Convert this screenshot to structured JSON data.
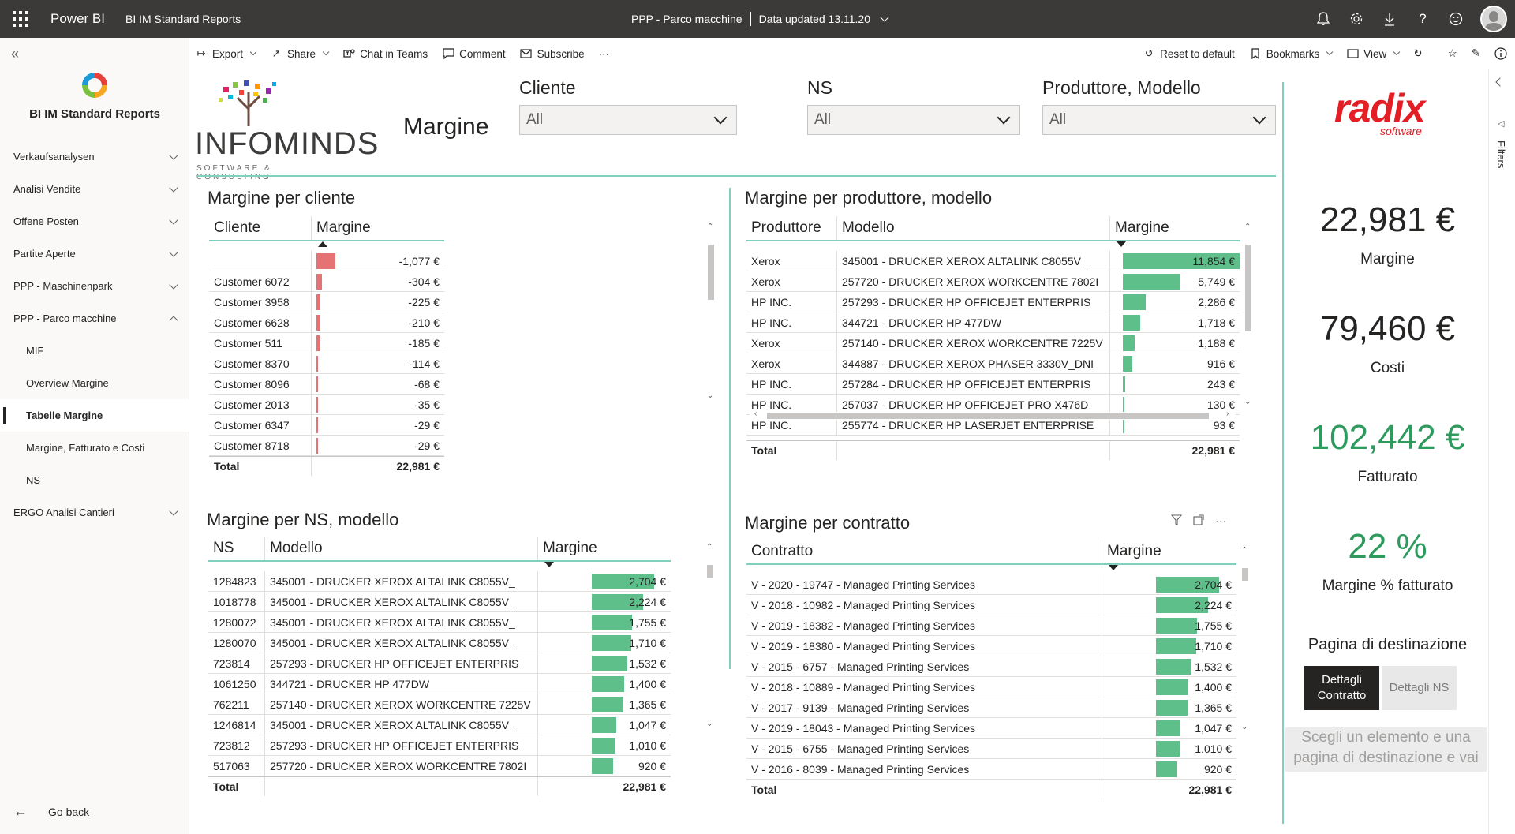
{
  "topbar": {
    "brand": "Power BI",
    "workspace": "BI IM Standard Reports",
    "report_name": "PPP - Parco macchine",
    "data_updated": "Data updated 13.11.20"
  },
  "leftnav": {
    "app_title": "BI IM Standard Reports",
    "items": [
      {
        "label": "Verkaufsanalysen",
        "type": "group",
        "expanded": false
      },
      {
        "label": "Analisi Vendite",
        "type": "group",
        "expanded": false
      },
      {
        "label": "Offene Posten",
        "type": "group",
        "expanded": false
      },
      {
        "label": "Partite Aperte",
        "type": "group",
        "expanded": false
      },
      {
        "label": "PPP - Maschinenpark",
        "type": "group",
        "expanded": false
      },
      {
        "label": "PPP - Parco macchine",
        "type": "group",
        "expanded": true
      },
      {
        "label": "MIF",
        "type": "sub"
      },
      {
        "label": "Overview Margine",
        "type": "sub"
      },
      {
        "label": "Tabelle Margine",
        "type": "sub",
        "active": true
      },
      {
        "label": "Margine, Fatturato e Costi",
        "type": "sub"
      },
      {
        "label": "NS",
        "type": "sub"
      },
      {
        "label": "ERGO Analisi Cantieri",
        "type": "group",
        "expanded": false
      }
    ],
    "go_back": "Go back"
  },
  "actionbar": {
    "export": "Export",
    "share": "Share",
    "chat": "Chat in Teams",
    "comment": "Comment",
    "subscribe": "Subscribe",
    "more": "···",
    "reset": "Reset to default",
    "bookmarks": "Bookmarks",
    "view": "View"
  },
  "header": {
    "logo_word": "INFOMINDS",
    "logo_sub": "SOFTWARE & CONSULTING",
    "page_title": "Margine"
  },
  "slicers": [
    {
      "label": "Cliente",
      "value": "All"
    },
    {
      "label": "NS",
      "value": "All"
    },
    {
      "label": "Produttore, Modello",
      "value": "All"
    }
  ],
  "colors": {
    "accent": "#81cfbd",
    "bar_positive": "#5fbf8a",
    "bar_negative": "#e57373",
    "kpi_green": "#2e9a5e",
    "radix_red": "#e31e24"
  },
  "table_cliente": {
    "title": "Margine per cliente",
    "headers": [
      "Cliente",
      "Margine"
    ],
    "rows": [
      {
        "name": "",
        "value": "-1,077 €",
        "num": -1077
      },
      {
        "name": "Customer 6072",
        "value": "-304 €",
        "num": -304
      },
      {
        "name": "Customer 3958",
        "value": "-225 €",
        "num": -225
      },
      {
        "name": "Customer 6628",
        "value": "-210 €",
        "num": -210
      },
      {
        "name": "Customer 511",
        "value": "-185 €",
        "num": -185
      },
      {
        "name": "Customer 8370",
        "value": "-114 €",
        "num": -114
      },
      {
        "name": "Customer 8096",
        "value": "-68 €",
        "num": -68
      },
      {
        "name": "Customer 2013",
        "value": "-35 €",
        "num": -35
      },
      {
        "name": "Customer 6347",
        "value": "-29 €",
        "num": -29
      },
      {
        "name": "Customer 8718",
        "value": "-29 €",
        "num": -29
      }
    ],
    "total_label": "Total",
    "total_value": "22,981 €"
  },
  "table_produttore": {
    "title": "Margine per produttore, modello",
    "headers": [
      "Produttore",
      "Modello",
      "Margine"
    ],
    "rows": [
      {
        "a": "Xerox",
        "b": "345001 - DRUCKER XEROX ALTALINK C8055V_",
        "value": "11,854 €",
        "num": 11854
      },
      {
        "a": "Xerox",
        "b": "257720 - DRUCKER XEROX WORKCENTRE 7802I",
        "value": "5,749 €",
        "num": 5749
      },
      {
        "a": "HP INC.",
        "b": "257293 - DRUCKER HP OFFICEJET ENTERPRIS",
        "value": "2,286 €",
        "num": 2286
      },
      {
        "a": "HP INC.",
        "b": "344721 - DRUCKER HP 477DW",
        "value": "1,718 €",
        "num": 1718
      },
      {
        "a": "Xerox",
        "b": "257140 - DRUCKER XEROX WORKCENTRE 7225V",
        "value": "1,188 €",
        "num": 1188
      },
      {
        "a": "Xerox",
        "b": "344887 - DRUCKER XEROX PHASER 3330V_DNI",
        "value": "916 €",
        "num": 916
      },
      {
        "a": "HP INC.",
        "b": "257284 - DRUCKER HP OFFICEJET ENTERPRIS",
        "value": "243 €",
        "num": 243
      },
      {
        "a": "HP INC.",
        "b": "257037 - DRUCKER HP OFFICEJET PRO X476D",
        "value": "130 €",
        "num": 130
      },
      {
        "a": "HP INC.",
        "b": "255774 - DRUCKER HP LASERJET ENTERPRISE",
        "value": "93 €",
        "num": 93
      }
    ],
    "total_label": "Total",
    "total_value": "22,981 €"
  },
  "table_ns": {
    "title": "Margine per NS, modello",
    "headers": [
      "NS",
      "Modello",
      "Margine"
    ],
    "rows": [
      {
        "a": "1284823",
        "b": "345001 - DRUCKER XEROX ALTALINK C8055V_",
        "value": "2,704 €",
        "num": 2704
      },
      {
        "a": "1018778",
        "b": "345001 - DRUCKER XEROX ALTALINK C8055V_",
        "value": "2,224 €",
        "num": 2224
      },
      {
        "a": "1280072",
        "b": "345001 - DRUCKER XEROX ALTALINK C8055V_",
        "value": "1,755 €",
        "num": 1755
      },
      {
        "a": "1280070",
        "b": "345001 - DRUCKER XEROX ALTALINK C8055V_",
        "value": "1,710 €",
        "num": 1710
      },
      {
        "a": "723814",
        "b": "257293 - DRUCKER HP OFFICEJET ENTERPRIS",
        "value": "1,532 €",
        "num": 1532
      },
      {
        "a": "1061250",
        "b": "344721 - DRUCKER HP 477DW",
        "value": "1,400 €",
        "num": 1400
      },
      {
        "a": "762211",
        "b": "257140 - DRUCKER XEROX WORKCENTRE 7225V",
        "value": "1,365 €",
        "num": 1365
      },
      {
        "a": "1246814",
        "b": "345001 - DRUCKER XEROX ALTALINK C8055V_",
        "value": "1,047 €",
        "num": 1047
      },
      {
        "a": "723812",
        "b": "257293 - DRUCKER HP OFFICEJET ENTERPRIS",
        "value": "1,010 €",
        "num": 1010
      },
      {
        "a": "517063",
        "b": "257720 - DRUCKER XEROX WORKCENTRE 7802I",
        "value": "920 €",
        "num": 920
      }
    ],
    "total_label": "Total",
    "total_value": "22,981 €"
  },
  "table_contratto": {
    "title": "Margine per contratto",
    "headers": [
      "Contratto",
      "Margine"
    ],
    "rows": [
      {
        "name": "V - 2020 - 19747 - Managed Printing Services",
        "value": "2,704 €",
        "num": 2704
      },
      {
        "name": "V - 2018 - 10982 - Managed Printing Services",
        "value": "2,224 €",
        "num": 2224
      },
      {
        "name": "V - 2019 - 18382 - Managed Printing Services",
        "value": "1,755 €",
        "num": 1755
      },
      {
        "name": "V - 2019 - 18380 - Managed Printing Services",
        "value": "1,710 €",
        "num": 1710
      },
      {
        "name": "V - 2015 - 6757 - Managed Printing Services",
        "value": "1,532 €",
        "num": 1532
      },
      {
        "name": "V - 2018 - 10889 - Managed Printing Services",
        "value": "1,400 €",
        "num": 1400
      },
      {
        "name": "V - 2017 - 9139 - Managed Printing Services",
        "value": "1,365 €",
        "num": 1365
      },
      {
        "name": "V - 2019 - 18043 - Managed Printing Services",
        "value": "1,047 €",
        "num": 1047
      },
      {
        "name": "V - 2015 - 6755 - Managed Printing Services",
        "value": "1,010 €",
        "num": 1010
      },
      {
        "name": "V - 2016 - 8039 - Managed Printing Services",
        "value": "920 €",
        "num": 920
      }
    ],
    "total_label": "Total",
    "total_value": "22,981 €"
  },
  "kpis": {
    "logo_word": "radix",
    "logo_sub": "software",
    "margine_value": "22,981 €",
    "margine_label": "Margine",
    "costi_value": "79,460 €",
    "costi_label": "Costi",
    "fatturato_value": "102,442 €",
    "fatturato_label": "Fatturato",
    "pct_value": "22 %",
    "pct_label": "Margine % fatturato"
  },
  "destination": {
    "title": "Pagina di destinazione",
    "btn_contratto": "Dettagli Contratto",
    "btn_ns": "Dettagli NS",
    "hint": "Scegli un elemento e una pagina di destinazione e vai"
  },
  "filters_pane": {
    "label": "Filters"
  }
}
